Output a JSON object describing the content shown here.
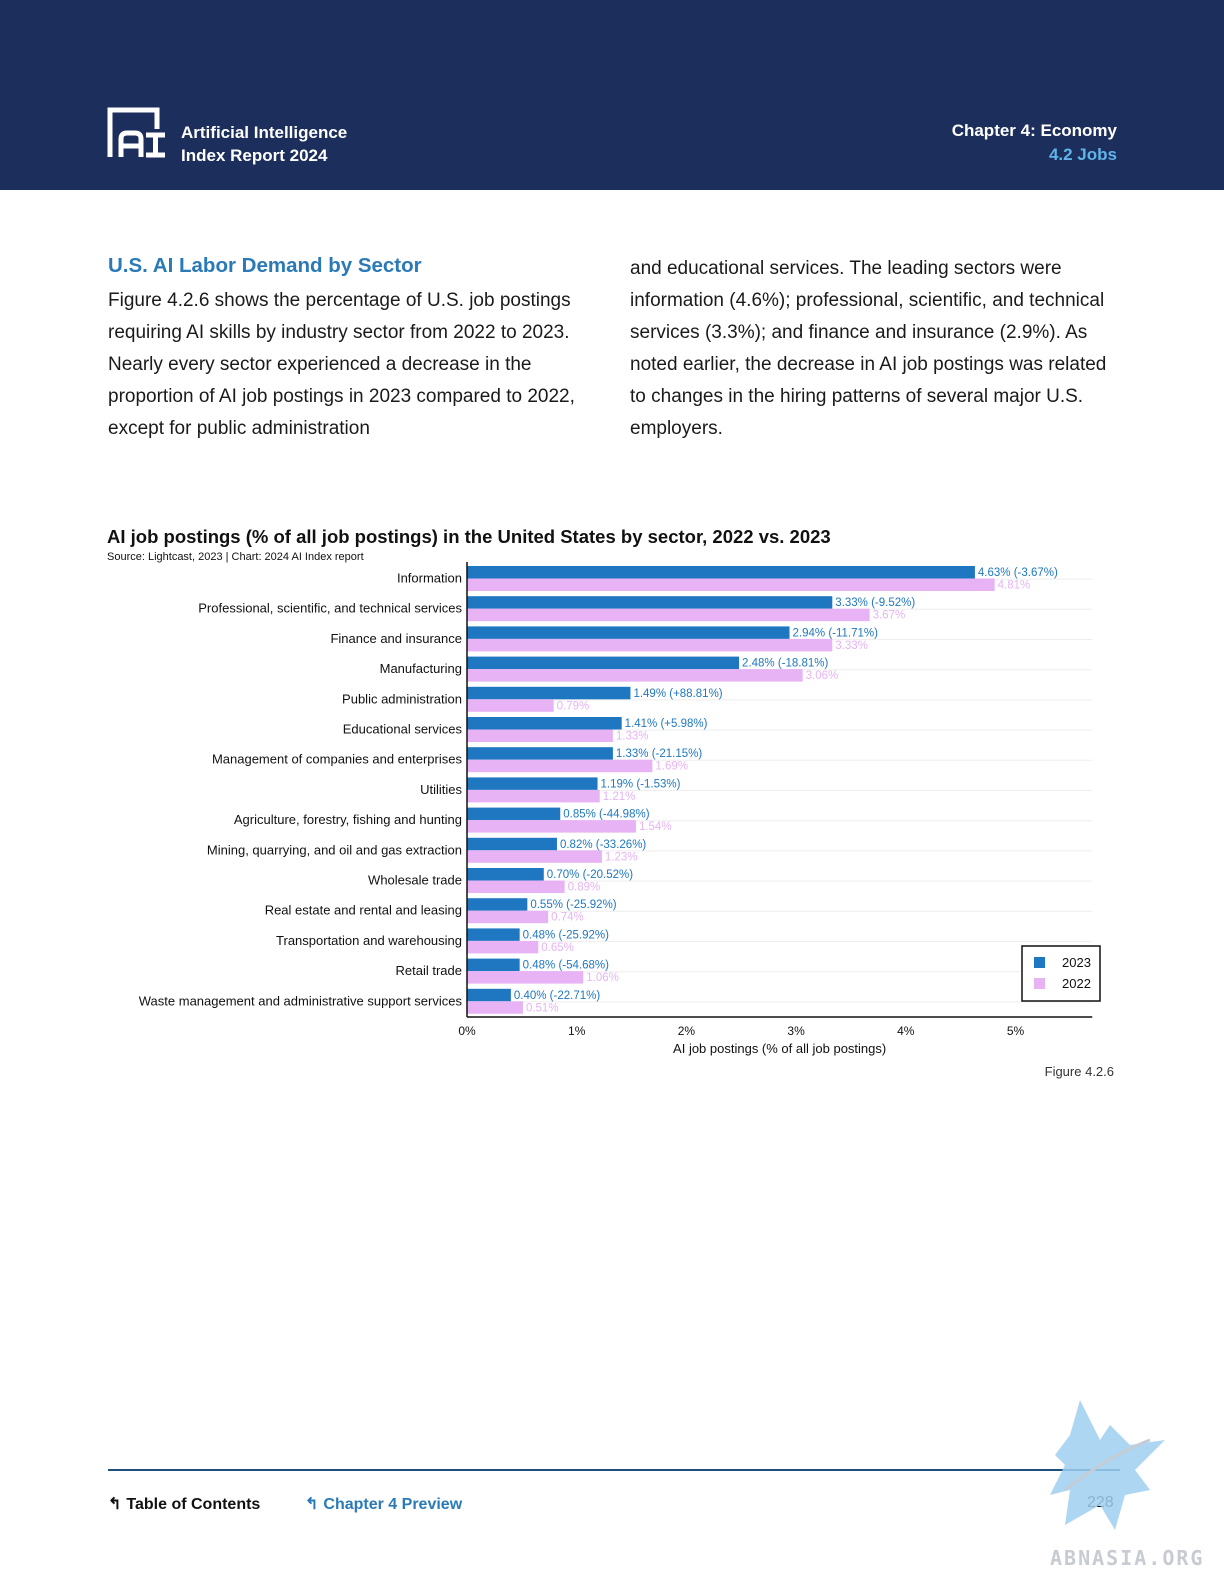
{
  "header": {
    "brand_line1": "Artificial Intelligence",
    "brand_line2": "Index Report 2024",
    "chapter": "Chapter 4: Economy",
    "section": "4.2 Jobs"
  },
  "body": {
    "section_title": "U.S. AI Labor Demand by Sector",
    "paragraph_left": "Figure 4.2.6 shows the percentage of U.S. job postings requiring AI skills by industry sector from 2022 to 2023. Nearly every sector experienced a decrease in the proportion of AI job postings in 2023 compared to 2022, except for public administration",
    "paragraph_right": "and educational services. The leading sectors were information (4.6%); professional, scientific, and technical services (3.3%); and finance and insurance (2.9%). As noted earlier, the decrease in AI job postings was related to changes in the hiring patterns of several major U.S. employers."
  },
  "chart_data": {
    "type": "bar",
    "orientation": "horizontal",
    "title": "AI job postings (% of all job postings) in the United States by sector, 2022 vs. 2023",
    "source": "Source: Lightcast, 2023 | Chart: 2024 AI Index report",
    "xlabel": "AI job postings (% of all job postings)",
    "ylabel": "",
    "xlim": [
      0,
      5.7
    ],
    "xticks": [
      "0%",
      "1%",
      "2%",
      "3%",
      "4%",
      "5%"
    ],
    "grid": true,
    "legend_position": "bottom-right",
    "categories": [
      "Information",
      "Professional, scientific, and technical services",
      "Finance and insurance",
      "Manufacturing",
      "Public administration",
      "Educational services",
      "Management of companies and enterprises",
      "Utilities",
      "Agriculture, forestry, fishing and hunting",
      "Mining, quarrying, and oil and gas extraction",
      "Wholesale trade",
      "Real estate and rental and leasing",
      "Transportation and warehousing",
      "Retail trade",
      "Waste management and administrative support services"
    ],
    "series": [
      {
        "name": "2023",
        "color": "#1f77c1",
        "values": [
          4.63,
          3.33,
          2.94,
          2.48,
          1.49,
          1.41,
          1.33,
          1.19,
          0.85,
          0.82,
          0.7,
          0.55,
          0.48,
          0.48,
          0.4
        ],
        "labels": [
          "4.63% (-3.67%)",
          "3.33% (-9.52%)",
          "2.94% (-11.71%)",
          "2.48% (-18.81%)",
          "1.49% (+88.81%)",
          "1.41% (+5.98%)",
          "1.33% (-21.15%)",
          "1.19% (-1.53%)",
          "0.85% (-44.98%)",
          "0.82% (-33.26%)",
          "0.70% (-20.52%)",
          "0.55% (-25.92%)",
          "0.48% (-25.92%)",
          "0.48% (-54.68%)",
          "0.40% (-22.71%)"
        ]
      },
      {
        "name": "2022",
        "color": "#e7b3f5",
        "values": [
          4.81,
          3.67,
          3.33,
          3.06,
          0.79,
          1.33,
          1.69,
          1.21,
          1.54,
          1.23,
          0.89,
          0.74,
          0.65,
          1.06,
          0.51
        ],
        "labels": [
          "4.81%",
          "3.67%",
          "3.33%",
          "3.06%",
          "0.79%",
          "1.33%",
          "1.69%",
          "1.21%",
          "1.54%",
          "1.23%",
          "0.89%",
          "0.74%",
          "0.65%",
          "1.06%",
          "0.51%"
        ]
      }
    ]
  },
  "figure_label": "Figure 4.2.6",
  "footer": {
    "toc": "Table of Contents",
    "chapter_preview": "Chapter 4 Preview",
    "page_number": "228",
    "watermark": "ABNASIA.ORG"
  }
}
